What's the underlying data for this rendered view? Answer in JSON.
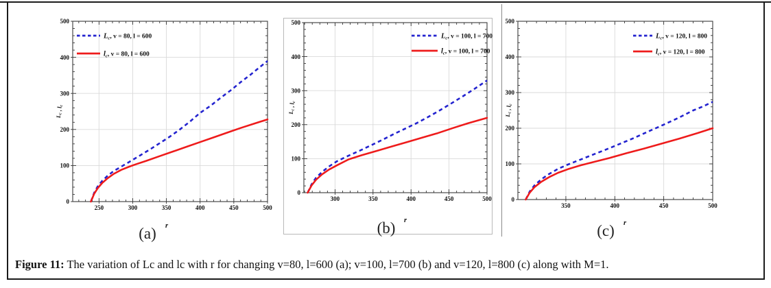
{
  "caption": {
    "label": "Figure 11:",
    "text": " The variation of Lc and lc with r for changing v=80, l=600 (a); v=100, l=700 (b) and v=120, l=800 (c) along with M=1."
  },
  "colors": {
    "series_blue": "#2323cf",
    "series_red": "#ee1b1b",
    "grid": "#d9d9d9",
    "frame": "#3a3a3a",
    "tick": "#1a1a1a",
    "text": "#111111",
    "panel_b_frame": "#b8b8b8",
    "divider": "#8a8a8a",
    "border": "#1a1a1a"
  },
  "chart_data": [
    {
      "type": "line",
      "panel_label": "(a)",
      "xlabel": "r",
      "ylabel": "Lc , lc",
      "xlim": [
        211,
        500
      ],
      "ylim": [
        0,
        500
      ],
      "xticks": [
        250,
        300,
        350,
        400,
        450,
        500
      ],
      "yticks": [
        0,
        100,
        200,
        300,
        400,
        500
      ],
      "grid": true,
      "legend_position": "top-left",
      "series": [
        {
          "name": "Lc, v = 80, l = 600",
          "symbol": "L",
          "sub": "c",
          "rest": ", v = 80, l = 600",
          "style": "dashed",
          "color": "blue",
          "points": [
            [
              238,
              0
            ],
            [
              243,
              25
            ],
            [
              248,
              42
            ],
            [
              255,
              58
            ],
            [
              263,
              72
            ],
            [
              272,
              85
            ],
            [
              283,
              97
            ],
            [
              295,
              110
            ],
            [
              310,
              127
            ],
            [
              325,
              144
            ],
            [
              340,
              162
            ],
            [
              355,
              180
            ],
            [
              370,
              200
            ],
            [
              385,
              222
            ],
            [
              400,
              246
            ],
            [
              415,
              265
            ],
            [
              430,
              287
            ],
            [
              445,
              308
            ],
            [
              460,
              331
            ],
            [
              475,
              352
            ],
            [
              488,
              372
            ],
            [
              500,
              390
            ]
          ]
        },
        {
          "name": "lc, v = 80, l = 600",
          "symbol": "l",
          "sub": "c",
          "rest": ", v = 80, l = 600",
          "style": "solid",
          "color": "red",
          "points": [
            [
              238,
              0
            ],
            [
              243,
              22
            ],
            [
              248,
              37
            ],
            [
              255,
              52
            ],
            [
              263,
              65
            ],
            [
              272,
              77
            ],
            [
              283,
              88
            ],
            [
              295,
              97
            ],
            [
              304,
              103
            ],
            [
              320,
              113
            ],
            [
              340,
              126
            ],
            [
              360,
              139
            ],
            [
              380,
              152
            ],
            [
              400,
              165
            ],
            [
              420,
              178
            ],
            [
              440,
              191
            ],
            [
              460,
              204
            ],
            [
              480,
              216
            ],
            [
              500,
              228
            ]
          ]
        }
      ]
    },
    {
      "type": "line",
      "panel_label": "(b)",
      "xlabel": "r",
      "ylabel": "Lc , lc",
      "xlim": [
        259,
        500
      ],
      "ylim": [
        0,
        500
      ],
      "xticks": [
        300,
        350,
        400,
        450,
        500
      ],
      "yticks": [
        0,
        100,
        200,
        300,
        400,
        500
      ],
      "grid": true,
      "legend_position": "top-right",
      "series": [
        {
          "name": "Lc, v = 100, l = 700",
          "symbol": "L",
          "sub": "c",
          "rest": ", v = 100, l = 700",
          "style": "dashed",
          "color": "blue",
          "points": [
            [
              264,
              0
            ],
            [
              269,
              24
            ],
            [
              275,
              44
            ],
            [
              283,
              61
            ],
            [
              292,
              77
            ],
            [
              303,
              93
            ],
            [
              317,
              108
            ],
            [
              332,
              123
            ],
            [
              347,
              139
            ],
            [
              362,
              155
            ],
            [
              377,
              172
            ],
            [
              392,
              188
            ],
            [
              407,
              204
            ],
            [
              422,
              222
            ],
            [
              437,
              241
            ],
            [
              452,
              261
            ],
            [
              468,
              283
            ],
            [
              484,
              306
            ],
            [
              500,
              330
            ]
          ]
        },
        {
          "name": "lc, v = 100, l = 700",
          "symbol": "l",
          "sub": "c",
          "rest": ", v = 100, l = 700",
          "style": "solid",
          "color": "red",
          "points": [
            [
              264,
              0
            ],
            [
              269,
              21
            ],
            [
              275,
              38
            ],
            [
              283,
              54
            ],
            [
              292,
              68
            ],
            [
              303,
              81
            ],
            [
              318,
              98
            ],
            [
              335,
              110
            ],
            [
              355,
              123
            ],
            [
              375,
              136
            ],
            [
              395,
              149
            ],
            [
              415,
              162
            ],
            [
              435,
              175
            ],
            [
              455,
              190
            ],
            [
              475,
              204
            ],
            [
              500,
              220
            ]
          ]
        }
      ]
    },
    {
      "type": "line",
      "panel_label": "(c)",
      "xlabel": "r",
      "ylabel": "Lc , lc",
      "xlim": [
        301,
        500
      ],
      "ylim": [
        0,
        500
      ],
      "xticks": [
        350,
        400,
        450,
        500
      ],
      "yticks": [
        0,
        100,
        200,
        300,
        400,
        500
      ],
      "grid": true,
      "legend_position": "top-right",
      "series": [
        {
          "name": "Lc, v = 120, l = 800",
          "symbol": "L",
          "sub": "c",
          "rest": ", v = 120, l = 800",
          "style": "dashed",
          "color": "blue",
          "points": [
            [
              309,
              0
            ],
            [
              313,
              22
            ],
            [
              318,
              40
            ],
            [
              325,
              57
            ],
            [
              333,
              72
            ],
            [
              342,
              86
            ],
            [
              352,
              98
            ],
            [
              363,
              110
            ],
            [
              376,
              124
            ],
            [
              390,
              139
            ],
            [
              405,
              156
            ],
            [
              420,
              173
            ],
            [
              436,
              193
            ],
            [
              450,
              210
            ],
            [
              465,
              229
            ],
            [
              480,
              250
            ],
            [
              490,
              261
            ],
            [
              500,
              274
            ]
          ]
        },
        {
          "name": "lc, v = 120, l = 800",
          "symbol": "l",
          "sub": "c",
          "rest": ", v = 120, l = 800",
          "style": "solid",
          "color": "red",
          "points": [
            [
              309,
              0
            ],
            [
              313,
              19
            ],
            [
              318,
              35
            ],
            [
              325,
              50
            ],
            [
              333,
              63
            ],
            [
              342,
              75
            ],
            [
              352,
              85
            ],
            [
              365,
              96
            ],
            [
              378,
              105
            ],
            [
              395,
              117
            ],
            [
              412,
              130
            ],
            [
              430,
              143
            ],
            [
              448,
              157
            ],
            [
              466,
              171
            ],
            [
              483,
              185
            ],
            [
              500,
              200
            ]
          ]
        }
      ]
    }
  ]
}
